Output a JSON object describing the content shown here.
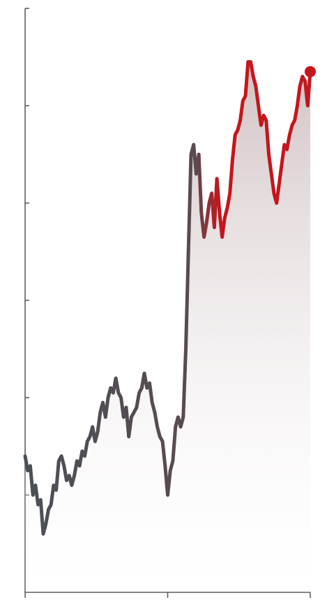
{
  "chart_data": {
    "type": "area",
    "title": "",
    "xlabel": "",
    "ylabel": "",
    "y_tick_count": 6,
    "x_tick_count": 3,
    "grid": false,
    "x": [
      0,
      1,
      2,
      3,
      4,
      5,
      6,
      7,
      8,
      9,
      10,
      11,
      12,
      13,
      14,
      15,
      16,
      17,
      18,
      19,
      20,
      21,
      22,
      23,
      24,
      25,
      26,
      27,
      28,
      29,
      30,
      31,
      32,
      33,
      34,
      35,
      36,
      37,
      38,
      39,
      40,
      41,
      42,
      43,
      44,
      45,
      46,
      47,
      48,
      49,
      50,
      51,
      52,
      53,
      54,
      55,
      56,
      57,
      58,
      59,
      60,
      61,
      62,
      63,
      64,
      65,
      66,
      67,
      68,
      69,
      70,
      71,
      72,
      73,
      74,
      75,
      76,
      77,
      78,
      79,
      80,
      81,
      82,
      83,
      84,
      85,
      86,
      87,
      88,
      89,
      90,
      91,
      92,
      93,
      94,
      95,
      96,
      97,
      98,
      99,
      100,
      101,
      102,
      103,
      104,
      105,
      106,
      107,
      108,
      109,
      110
    ],
    "values": [
      1.9,
      1.75,
      1.8,
      1.5,
      1.6,
      1.4,
      1.45,
      1.1,
      1.2,
      1.35,
      1.4,
      1.6,
      1.55,
      1.85,
      1.9,
      1.8,
      1.65,
      1.7,
      1.6,
      1.7,
      1.85,
      1.8,
      1.95,
      1.9,
      2.05,
      2.1,
      2.2,
      2.05,
      2.15,
      2.35,
      2.45,
      2.3,
      2.5,
      2.6,
      2.55,
      2.7,
      2.55,
      2.5,
      2.3,
      2.4,
      2.1,
      2.3,
      2.35,
      2.4,
      2.55,
      2.6,
      2.75,
      2.6,
      2.65,
      2.45,
      2.35,
      2.2,
      2.1,
      2.05,
      1.8,
      1.5,
      1.75,
      1.85,
      2.2,
      2.3,
      2.2,
      2.3,
      3.0,
      4.0,
      5.0,
      5.1,
      4.8,
      5.0,
      4.4,
      4.15,
      4.3,
      4.5,
      4.6,
      4.25,
      4.75,
      4.4,
      4.15,
      4.35,
      4.45,
      4.6,
      4.95,
      5.2,
      5.25,
      5.35,
      5.55,
      5.6,
      5.95,
      5.95,
      5.8,
      5.7,
      5.5,
      5.3,
      5.4,
      5.35,
      5.0,
      4.8,
      4.6,
      4.5,
      4.7,
      4.9,
      5.1,
      5.05,
      5.2,
      5.3,
      5.35,
      5.5,
      5.7,
      5.8,
      5.75,
      5.5,
      5.85
    ],
    "ylim": [
      0.5,
      6.5
    ],
    "xlim": [
      0,
      110
    ],
    "colors": {
      "line_start": "#4a5057",
      "line_mid": "#5a4a50",
      "line_end": "#c4161c",
      "fill_top": "#c9b7b9",
      "fill_bottom": "#ffffff",
      "axis": "#555555"
    }
  }
}
